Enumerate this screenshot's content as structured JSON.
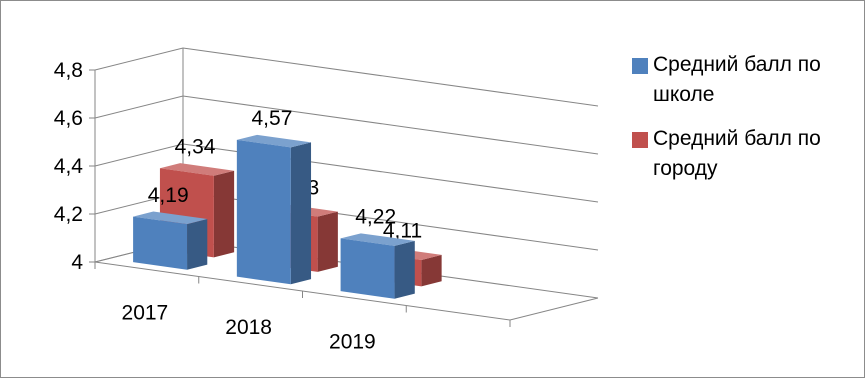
{
  "chart_data": {
    "type": "bar",
    "categories": [
      "2017",
      "2018",
      "2019"
    ],
    "series": [
      {
        "name": "Средний балл по школе",
        "values": [
          4.19,
          4.57,
          4.22
        ],
        "color": "#4f81bd",
        "labels": [
          "4,19",
          "4,57",
          "4,22"
        ]
      },
      {
        "name": "Средний балл по городу",
        "values": [
          4.34,
          4.23,
          4.11
        ],
        "color": "#c0504d",
        "labels": [
          "4,34",
          "4,23",
          "4,11"
        ]
      }
    ],
    "y_ticks": [
      "4",
      "4,2",
      "4,4",
      "4,6",
      "4,8"
    ],
    "ylim": [
      4,
      4.8
    ],
    "grid": true,
    "legend_position": "right",
    "three_d": true,
    "title": "",
    "xlabel": "",
    "ylabel": ""
  }
}
